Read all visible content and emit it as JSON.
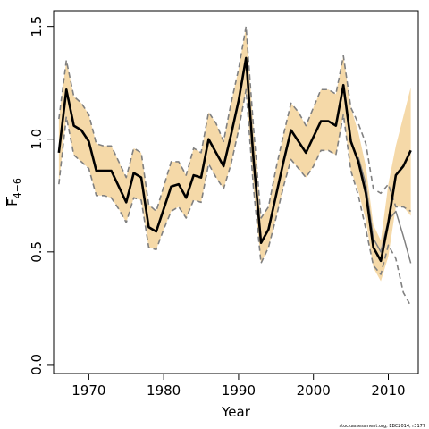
{
  "chart_data": {
    "type": "line",
    "title": "",
    "xlabel": "Year",
    "ylabel_main": "F",
    "ylabel_sub": "4−6",
    "xlim": [
      1965.3,
      2014.0
    ],
    "ylim": [
      -0.04,
      1.57
    ],
    "xticks": [
      1970,
      1980,
      1990,
      2000,
      2010
    ],
    "yticks": [
      0.0,
      0.5,
      1.0,
      1.5
    ],
    "ytick_labels": [
      "0.0",
      "0.5",
      "1.0",
      "1.5"
    ],
    "grid": false,
    "colors": {
      "band": "#f5d9a8",
      "current": "#000000",
      "previous": "#808080",
      "frame": "#000000"
    },
    "series": [
      {
        "role": "current_estimate",
        "style": "solid-thick",
        "x": [
          1966,
          1967,
          1968,
          1969,
          1970,
          1971,
          1972,
          1973,
          1974,
          1975,
          1976,
          1977,
          1978,
          1979,
          1980,
          1981,
          1982,
          1983,
          1984,
          1985,
          1986,
          1987,
          1988,
          1989,
          1990,
          1991,
          1992,
          1993,
          1994,
          1995,
          1996,
          1997,
          1998,
          1999,
          2000,
          2001,
          2002,
          2003,
          2004,
          2005,
          2006,
          2007,
          2008,
          2009,
          2010,
          2011,
          2012,
          2013
        ],
        "y": [
          0.94,
          1.22,
          1.06,
          1.04,
          0.99,
          0.86,
          0.86,
          0.86,
          0.79,
          0.72,
          0.85,
          0.83,
          0.61,
          0.59,
          0.69,
          0.79,
          0.8,
          0.74,
          0.84,
          0.83,
          1.0,
          0.94,
          0.88,
          1.02,
          1.17,
          1.36,
          0.91,
          0.54,
          0.6,
          0.75,
          0.9,
          1.04,
          0.99,
          0.94,
          1.01,
          1.08,
          1.08,
          1.06,
          1.24,
          0.99,
          0.9,
          0.76,
          0.52,
          0.46,
          0.63,
          0.84,
          0.88,
          0.95
        ]
      },
      {
        "role": "previous_estimate",
        "style": "solid-thin",
        "x": [
          2006,
          2007,
          2008,
          2009,
          2010,
          2011,
          2012,
          2013
        ],
        "y": [
          0.92,
          0.8,
          0.56,
          0.5,
          0.64,
          0.68,
          0.57,
          0.45
        ]
      },
      {
        "role": "upper_bound",
        "style": "dashed",
        "x": [
          1966,
          1967,
          1968,
          1969,
          1970,
          1971,
          1972,
          1973,
          1974,
          1975,
          1976,
          1977,
          1978,
          1979,
          1980,
          1981,
          1982,
          1983,
          1984,
          1985,
          1986,
          1987,
          1988,
          1989,
          1990,
          1991,
          1992,
          1993,
          1994,
          1995,
          1996,
          1997,
          1998,
          1999,
          2000,
          2001,
          2002,
          2003,
          2004,
          2005,
          2006,
          2007,
          2008,
          2009,
          2010,
          2011,
          2012,
          2013
        ],
        "y": [
          1.09,
          1.35,
          1.19,
          1.16,
          1.11,
          0.98,
          0.97,
          0.97,
          0.9,
          0.83,
          0.96,
          0.94,
          0.71,
          0.68,
          0.79,
          0.9,
          0.9,
          0.84,
          0.96,
          0.94,
          1.12,
          1.07,
          0.99,
          1.16,
          1.31,
          1.5,
          1.05,
          0.65,
          0.7,
          0.87,
          1.02,
          1.16,
          1.12,
          1.06,
          1.14,
          1.22,
          1.22,
          1.2,
          1.37,
          1.14,
          1.07,
          0.98,
          0.78,
          0.76,
          0.8,
          0.7,
          0.7,
          0.68
        ]
      },
      {
        "role": "lower_bound",
        "style": "dashed",
        "x": [
          1966,
          1967,
          1968,
          1969,
          1970,
          1971,
          1972,
          1973,
          1974,
          1975,
          1976,
          1977,
          1978,
          1979,
          1980,
          1981,
          1982,
          1983,
          1984,
          1985,
          1986,
          1987,
          1988,
          1989,
          1990,
          1991,
          1992,
          1993,
          1994,
          1995,
          1996,
          1997,
          1998,
          1999,
          2000,
          2001,
          2002,
          2003,
          2004,
          2005,
          2006,
          2007,
          2008,
          2009,
          2010,
          2011,
          2012,
          2013
        ],
        "y": [
          0.8,
          1.1,
          0.93,
          0.9,
          0.87,
          0.75,
          0.75,
          0.74,
          0.69,
          0.63,
          0.74,
          0.73,
          0.52,
          0.51,
          0.6,
          0.68,
          0.7,
          0.65,
          0.73,
          0.72,
          0.89,
          0.83,
          0.78,
          0.89,
          1.04,
          1.22,
          0.78,
          0.45,
          0.52,
          0.65,
          0.79,
          0.91,
          0.87,
          0.83,
          0.88,
          0.95,
          0.95,
          0.93,
          1.11,
          0.86,
          0.75,
          0.6,
          0.44,
          0.4,
          0.53,
          0.47,
          0.32,
          0.26
        ]
      },
      {
        "role": "confidence_band",
        "style": "fill",
        "x": [
          1966,
          1967,
          1968,
          1969,
          1970,
          1971,
          1972,
          1973,
          1974,
          1975,
          1976,
          1977,
          1978,
          1979,
          1980,
          1981,
          1982,
          1983,
          1984,
          1985,
          1986,
          1987,
          1988,
          1989,
          1990,
          1991,
          1992,
          1993,
          1994,
          1995,
          1996,
          1997,
          1998,
          1999,
          2000,
          2001,
          2002,
          2003,
          2004,
          2005,
          2006,
          2007,
          2008,
          2009,
          2010,
          2011,
          2012,
          2013
        ],
        "upper": [
          1.09,
          1.35,
          1.19,
          1.16,
          1.11,
          0.98,
          0.97,
          0.97,
          0.9,
          0.83,
          0.96,
          0.94,
          0.71,
          0.68,
          0.79,
          0.9,
          0.9,
          0.84,
          0.96,
          0.94,
          1.12,
          1.07,
          0.99,
          1.16,
          1.31,
          1.5,
          1.05,
          0.65,
          0.7,
          0.87,
          1.02,
          1.16,
          1.12,
          1.06,
          1.14,
          1.22,
          1.22,
          1.2,
          1.37,
          1.14,
          1.03,
          0.88,
          0.62,
          0.55,
          0.8,
          0.97,
          1.1,
          1.23
        ],
        "lower": [
          0.8,
          1.1,
          0.93,
          0.9,
          0.87,
          0.75,
          0.75,
          0.74,
          0.69,
          0.63,
          0.74,
          0.73,
          0.52,
          0.51,
          0.6,
          0.68,
          0.7,
          0.65,
          0.73,
          0.72,
          0.89,
          0.83,
          0.78,
          0.89,
          1.04,
          1.22,
          0.78,
          0.45,
          0.52,
          0.65,
          0.79,
          0.91,
          0.87,
          0.83,
          0.88,
          0.95,
          0.95,
          0.93,
          1.11,
          0.86,
          0.77,
          0.64,
          0.43,
          0.37,
          0.48,
          0.7,
          0.7,
          0.66
        ]
      }
    ],
    "credit": "stockassessment.org, EBC2014, r3177"
  }
}
